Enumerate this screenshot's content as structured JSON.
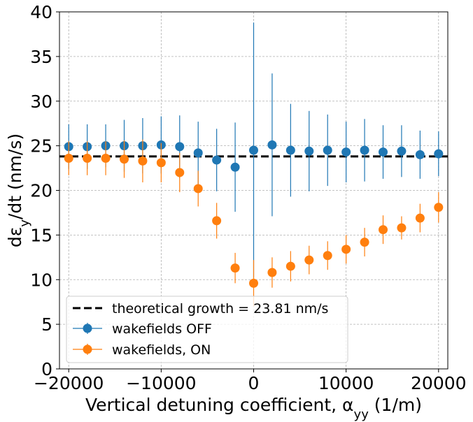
{
  "chart_data": {
    "type": "scatter",
    "xlabel": "Vertical detuning coefficient, α",
    "xlabel_sub": "yy",
    "xlabel_tail": " (1/m)",
    "ylabel": "dε",
    "ylabel_sub": "y",
    "ylabel_tail": "/dt (nm/s)",
    "xlim": [
      -21000,
      21000
    ],
    "ylim": [
      0,
      40
    ],
    "xticks": [
      -20000,
      -10000,
      0,
      10000,
      20000
    ],
    "xtick_labels": [
      "−20000",
      "−10000",
      "0",
      "10000",
      "20000"
    ],
    "yticks": [
      0,
      5,
      10,
      15,
      20,
      25,
      30,
      35,
      40
    ],
    "ytick_labels": [
      "0",
      "5",
      "10",
      "15",
      "20",
      "25",
      "30",
      "35",
      "40"
    ],
    "grid": true,
    "legend_position": "lower-left",
    "reference_line": {
      "label": "theoretical growth = 23.81 nm/s",
      "y": 23.81,
      "color": "#000000",
      "style": "dashed"
    },
    "series": [
      {
        "name": "wakefields OFF",
        "color": "#1f77b4",
        "x": [
          -20000,
          -18000,
          -16000,
          -14000,
          -12000,
          -10000,
          -8000,
          -6000,
          -4000,
          -2000,
          0,
          2000,
          4000,
          6000,
          8000,
          10000,
          12000,
          14000,
          16000,
          18000,
          20000
        ],
        "y": [
          24.9,
          24.9,
          25.0,
          25.0,
          25.0,
          25.1,
          24.9,
          24.2,
          23.4,
          22.6,
          24.5,
          25.1,
          24.5,
          24.4,
          24.5,
          24.3,
          24.5,
          24.3,
          24.4,
          24.0,
          24.1
        ],
        "err": [
          2.5,
          2.5,
          2.4,
          2.9,
          3.1,
          3.2,
          3.5,
          3.5,
          3.5,
          5.0,
          14.3,
          8.0,
          5.2,
          4.5,
          4.0,
          3.4,
          3.5,
          3.0,
          2.9,
          2.7,
          2.5
        ]
      },
      {
        "name": "wakefields, ON",
        "color": "#ff7f0e",
        "x": [
          -20000,
          -18000,
          -16000,
          -14000,
          -12000,
          -10000,
          -8000,
          -6000,
          -4000,
          -2000,
          0,
          2000,
          4000,
          6000,
          8000,
          10000,
          12000,
          14000,
          16000,
          18000,
          20000
        ],
        "y": [
          23.6,
          23.6,
          23.6,
          23.5,
          23.3,
          23.1,
          22.0,
          20.2,
          16.6,
          11.3,
          9.6,
          10.8,
          11.5,
          12.2,
          12.7,
          13.4,
          14.2,
          15.6,
          15.8,
          16.9,
          18.1
        ],
        "err": [
          1.9,
          1.9,
          1.9,
          2.1,
          2.4,
          2.2,
          2.2,
          2.0,
          2.0,
          1.7,
          2.6,
          1.7,
          1.7,
          1.6,
          1.6,
          1.6,
          1.6,
          1.6,
          1.3,
          1.6,
          1.7
        ]
      }
    ]
  }
}
